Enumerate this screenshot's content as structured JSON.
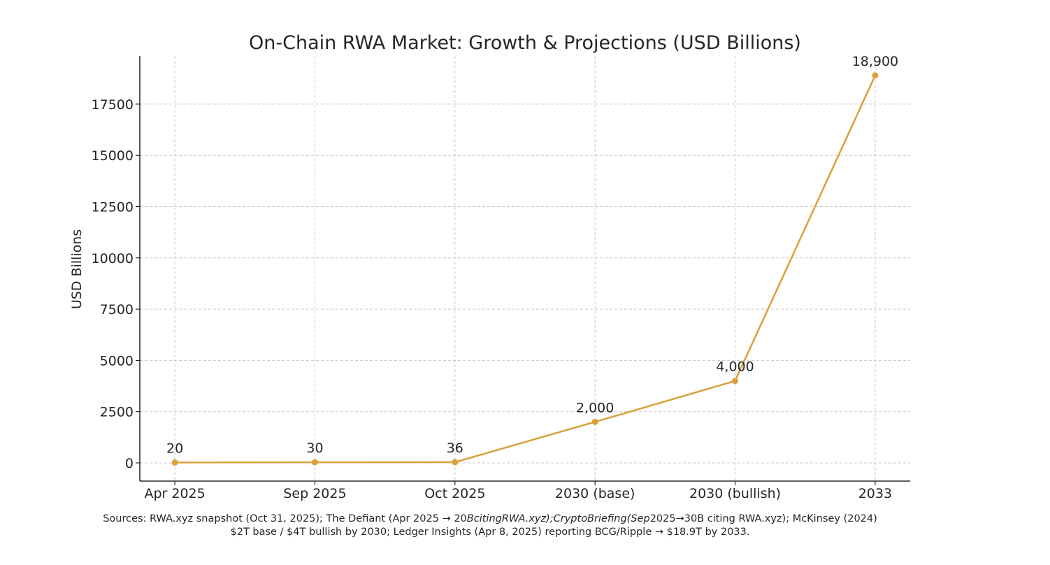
{
  "chart_data": {
    "type": "line",
    "title": "On-Chain RWA Market: Growth & Projections (USD Billions)",
    "xlabel": "",
    "ylabel": "USD Billions",
    "categories": [
      "Apr 2025",
      "Sep 2025",
      "Oct 2025",
      "2030 (base)",
      "2030 (bullish)",
      "2033"
    ],
    "values": [
      20,
      30,
      36,
      2000,
      4000,
      18900
    ],
    "data_labels": [
      "20",
      "30",
      "36",
      "2,000",
      "4,000",
      "18,900"
    ],
    "yticks": [
      0,
      2500,
      5000,
      7500,
      10000,
      12500,
      15000,
      17500
    ],
    "ylim": [
      -887,
      19850
    ],
    "grid": true,
    "grid_style": "dashed",
    "line_color": "#D9A03B",
    "marker": "circle"
  },
  "caption": {
    "line1_a": "Sources: RWA.xyz snapshot (Oct 31, 2025); The Defiant (Apr 2025 → 20",
    "line1_b": "BcitingRWA.xyz);CryptoBriefing(Sep",
    "line1_c": "2025→30B citing RWA.xyz); McKinsey (2024)",
    "line2": "$2T base / $4T bullish by 2030; Ledger Insights (Apr 8, 2025) reporting BCG/Ripple → $18.9T by 2033."
  }
}
